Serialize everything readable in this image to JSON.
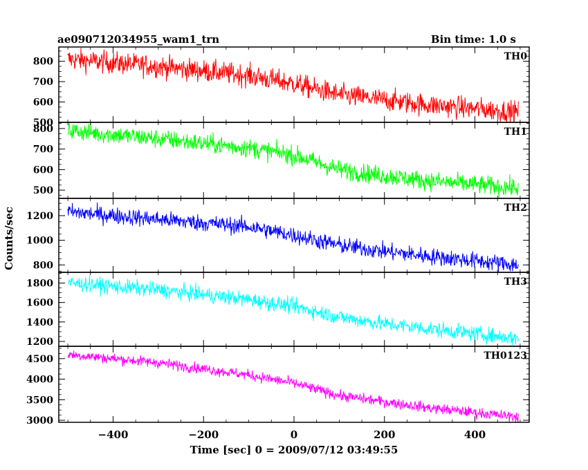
{
  "header": {
    "title": "ae090712034955_wam1_trn",
    "bin_time": "Bin time: 1.0 s"
  },
  "ylabel": "Counts/sec",
  "xlabel": "Time [sec] 0 = 2009/07/12 03:49:55",
  "chart_data": {
    "type": "line",
    "title": "ae090712034955_wam1_trn",
    "xlabel": "Time [sec] 0 = 2009/07/12 03:49:55",
    "ylabel": "Counts/sec",
    "xlim": [
      -520,
      520
    ],
    "x_ticks": [
      -400,
      -200,
      0,
      200,
      400
    ],
    "x_tick_labels": [
      "−400",
      "−200",
      "0",
      "200",
      "400"
    ],
    "x_range": [
      -500,
      496
    ],
    "bin_time_s": 1.0,
    "panels": [
      {
        "name": "TH0",
        "color": "#ff0000",
        "ylim": [
          500,
          870
        ],
        "y_ticks": [
          500,
          600,
          700,
          800
        ],
        "trend": {
          "x": [
            -500,
            -300,
            -100,
            0,
            100,
            200,
            300,
            496
          ],
          "y": [
            810,
            775,
            730,
            690,
            635,
            610,
            585,
            550
          ]
        },
        "noise": 38
      },
      {
        "name": "TH1",
        "color": "#00ff00",
        "ylim": [
          460,
          830
        ],
        "y_ticks": [
          500,
          600,
          700,
          800
        ],
        "trend": {
          "x": [
            -500,
            -300,
            -100,
            0,
            100,
            200,
            300,
            496
          ],
          "y": [
            790,
            750,
            705,
            670,
            600,
            570,
            545,
            510
          ]
        },
        "noise": 32
      },
      {
        "name": "TH2",
        "color": "#0000ff",
        "ylim": [
          740,
          1340
        ],
        "y_ticks": [
          800,
          1000,
          1200
        ],
        "trend": {
          "x": [
            -500,
            -300,
            -100,
            0,
            100,
            200,
            300,
            496
          ],
          "y": [
            1230,
            1170,
            1110,
            1040,
            960,
            910,
            870,
            800
          ]
        },
        "noise": 48
      },
      {
        "name": "TH3",
        "color": "#00ffff",
        "ylim": [
          1150,
          1910
        ],
        "y_ticks": [
          1200,
          1400,
          1600,
          1800
        ],
        "trend": {
          "x": [
            -500,
            -300,
            -100,
            0,
            100,
            200,
            300,
            496
          ],
          "y": [
            1800,
            1730,
            1630,
            1560,
            1450,
            1380,
            1330,
            1230
          ]
        },
        "noise": 55
      },
      {
        "name": "TH0123",
        "color": "#ff00ff",
        "ylim": [
          2950,
          4800
        ],
        "y_ticks": [
          3000,
          3500,
          4000,
          4500
        ],
        "trend": {
          "x": [
            -500,
            -300,
            -100,
            0,
            100,
            200,
            300,
            496
          ],
          "y": [
            4600,
            4400,
            4100,
            3900,
            3600,
            3450,
            3300,
            3080
          ]
        },
        "noise": 90
      }
    ]
  }
}
